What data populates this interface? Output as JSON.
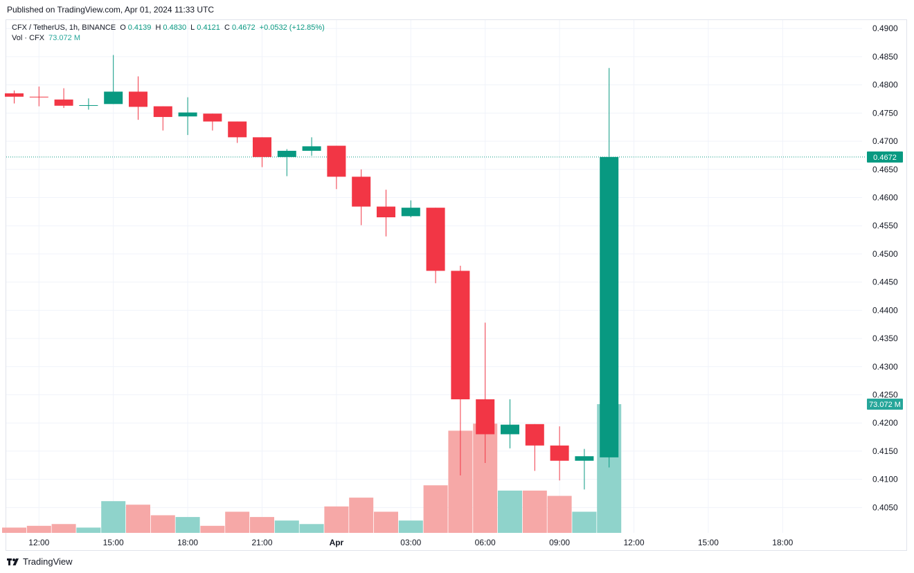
{
  "header": {
    "published": "Published on TradingView.com, Apr 01, 2024 11:33 UTC"
  },
  "legend": {
    "symbol": "CFX / TetherUS, 1h, BINANCE",
    "open_label": "O",
    "open": "0.4139",
    "high_label": "H",
    "high": "0.4830",
    "low_label": "L",
    "low": "0.4121",
    "close_label": "C",
    "close": "0.4672",
    "change": "+0.0532 (+12.85%)",
    "vol_label": "Vol · CFX",
    "vol_value": "73.072 M"
  },
  "footer": {
    "brand": "TradingView"
  },
  "colors": {
    "up": "#089981",
    "down": "#f23645",
    "vol_up": "#8fd3cb",
    "vol_down": "#f6a8a7",
    "grid": "#f0f3fa",
    "axis_text": "#131722"
  },
  "chart_data": {
    "type": "candlestick",
    "title": "CFX / TetherUS, 1h, BINANCE",
    "x_ticks": [
      "12:00",
      "15:00",
      "18:00",
      "21:00",
      "Apr",
      "03:00",
      "06:00",
      "09:00",
      "12:00",
      "15:00",
      "18:00"
    ],
    "y_ticks": [
      "0.4050",
      "0.4100",
      "0.4150",
      "0.4200",
      "0.4250",
      "0.4300",
      "0.4350",
      "0.4400",
      "0.4450",
      "0.4500",
      "0.4550",
      "0.4600",
      "0.4650",
      "0.4700",
      "0.4750",
      "0.4800",
      "0.4850",
      "0.4900"
    ],
    "ylim": [
      0.4005,
      0.4915
    ],
    "last_price": "0.4672",
    "last_volume": "73.072 M",
    "series": [
      {
        "time": "11:00",
        "o": 0.4785,
        "h": 0.479,
        "l": 0.4767,
        "c": 0.4779,
        "v": 3
      },
      {
        "time": "12:00",
        "o": 0.4779,
        "h": 0.4797,
        "l": 0.4762,
        "c": 0.4778,
        "v": 4
      },
      {
        "time": "13:00",
        "o": 0.4774,
        "h": 0.4794,
        "l": 0.4759,
        "c": 0.4763,
        "v": 5
      },
      {
        "time": "14:00",
        "o": 0.4764,
        "h": 0.4776,
        "l": 0.4756,
        "c": 0.4764,
        "v": 3
      },
      {
        "time": "15:00",
        "o": 0.4766,
        "h": 0.4853,
        "l": 0.4766,
        "c": 0.4788,
        "v": 18
      },
      {
        "time": "16:00",
        "o": 0.4788,
        "h": 0.4815,
        "l": 0.4738,
        "c": 0.4761,
        "v": 16
      },
      {
        "time": "17:00",
        "o": 0.4762,
        "h": 0.4762,
        "l": 0.4719,
        "c": 0.4743,
        "v": 10
      },
      {
        "time": "18:00",
        "o": 0.4744,
        "h": 0.4778,
        "l": 0.4711,
        "c": 0.4751,
        "v": 9
      },
      {
        "time": "19:00",
        "o": 0.4749,
        "h": 0.4749,
        "l": 0.4719,
        "c": 0.4735,
        "v": 4
      },
      {
        "time": "20:00",
        "o": 0.4735,
        "h": 0.4735,
        "l": 0.4697,
        "c": 0.4707,
        "v": 12
      },
      {
        "time": "21:00",
        "o": 0.4707,
        "h": 0.4707,
        "l": 0.4654,
        "c": 0.4672,
        "v": 9
      },
      {
        "time": "22:00",
        "o": 0.4672,
        "h": 0.4686,
        "l": 0.4638,
        "c": 0.4683,
        "v": 7
      },
      {
        "time": "23:00",
        "o": 0.4683,
        "h": 0.4707,
        "l": 0.4674,
        "c": 0.4691,
        "v": 5
      },
      {
        "time": "00:00",
        "o": 0.4692,
        "h": 0.4692,
        "l": 0.4615,
        "c": 0.4637,
        "v": 15
      },
      {
        "time": "01:00",
        "o": 0.4637,
        "h": 0.465,
        "l": 0.4551,
        "c": 0.4584,
        "v": 20
      },
      {
        "time": "02:00",
        "o": 0.4584,
        "h": 0.4614,
        "l": 0.4531,
        "c": 0.4565,
        "v": 12
      },
      {
        "time": "03:00",
        "o": 0.4567,
        "h": 0.4595,
        "l": 0.4565,
        "c": 0.4582,
        "v": 7
      },
      {
        "time": "04:00",
        "o": 0.4582,
        "h": 0.4582,
        "l": 0.4448,
        "c": 0.447,
        "v": 27
      },
      {
        "time": "05:00",
        "o": 0.447,
        "h": 0.4479,
        "l": 0.4107,
        "c": 0.4242,
        "v": 58
      },
      {
        "time": "06:00",
        "o": 0.4242,
        "h": 0.4378,
        "l": 0.4129,
        "c": 0.418,
        "v": 62
      },
      {
        "time": "07:00",
        "o": 0.418,
        "h": 0.4242,
        "l": 0.4155,
        "c": 0.4197,
        "v": 24
      },
      {
        "time": "08:00",
        "o": 0.4198,
        "h": 0.4198,
        "l": 0.4115,
        "c": 0.416,
        "v": 24
      },
      {
        "time": "09:00",
        "o": 0.416,
        "h": 0.4194,
        "l": 0.4098,
        "c": 0.4133,
        "v": 21
      },
      {
        "time": "10:00",
        "o": 0.4133,
        "h": 0.4154,
        "l": 0.4082,
        "c": 0.4141,
        "v": 12
      },
      {
        "time": "11:00",
        "o": 0.4139,
        "h": 0.483,
        "l": 0.4121,
        "c": 0.4672,
        "v": 73.072
      }
    ],
    "grid": true
  }
}
